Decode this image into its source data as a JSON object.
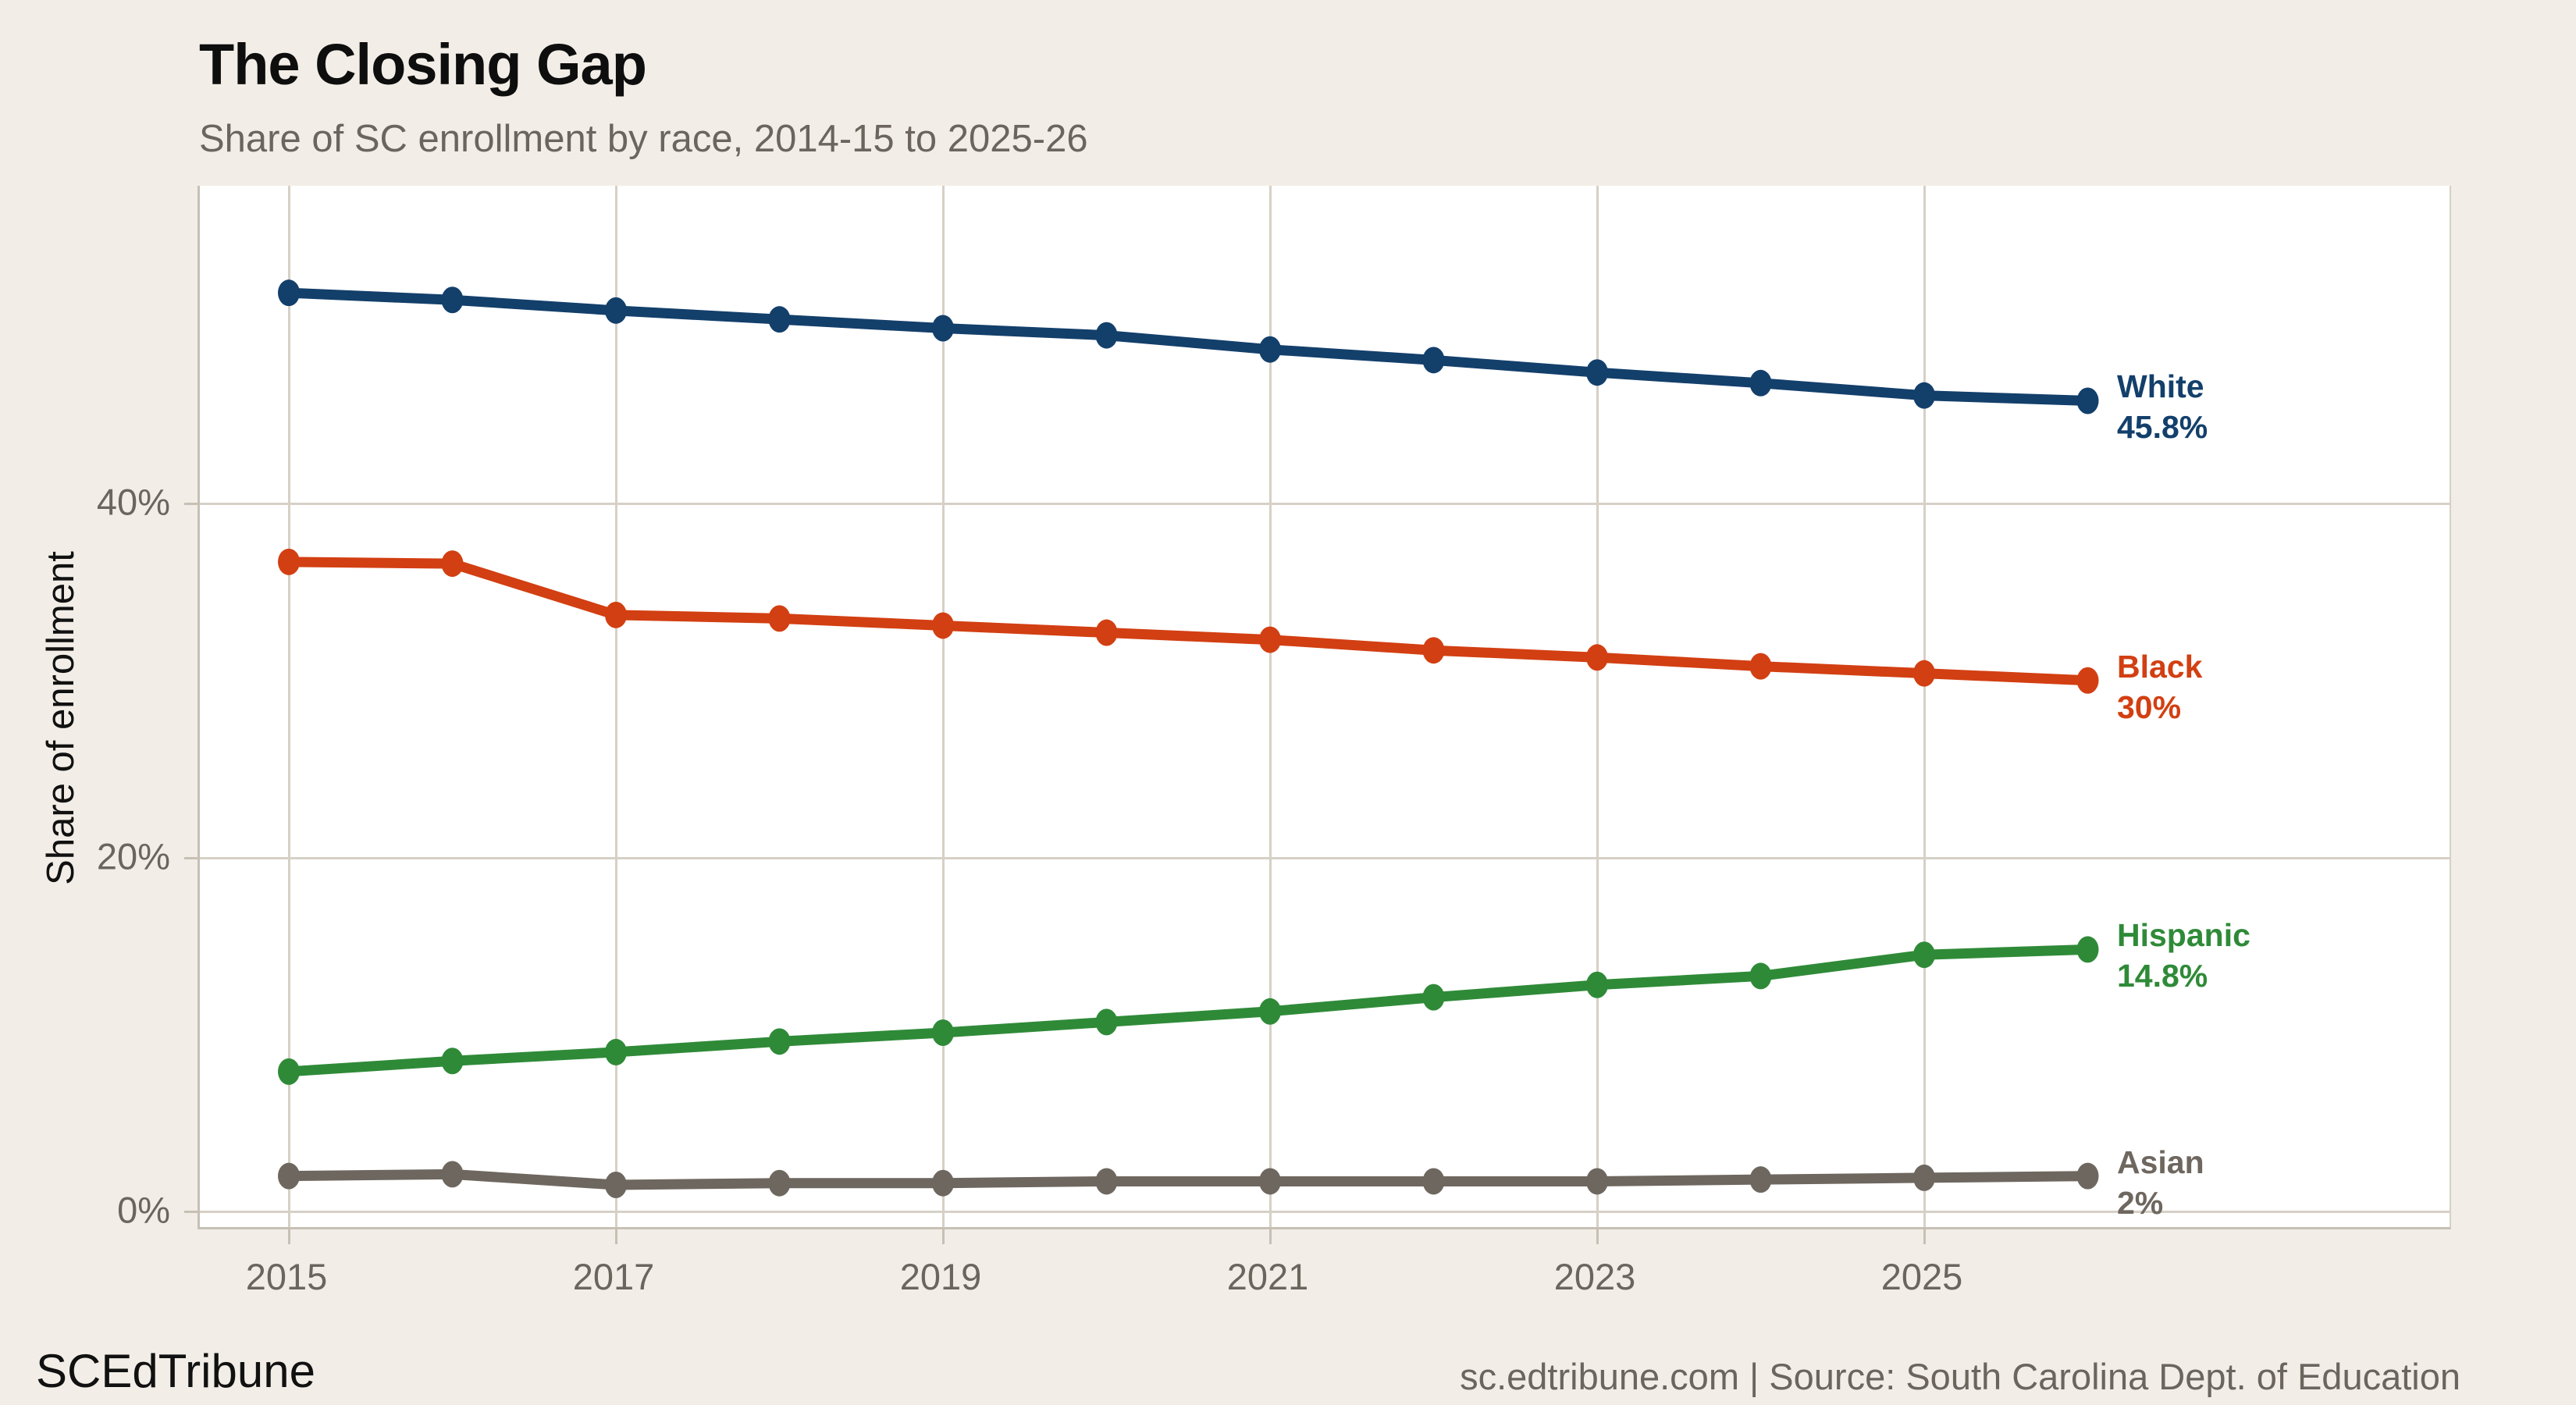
{
  "header": {
    "title": "The Closing Gap",
    "subtitle": "Share of SC enrollment by race, 2014-15 to 2025-26"
  },
  "chart_data": {
    "type": "line",
    "x": [
      2015,
      2016,
      2017,
      2018,
      2019,
      2020,
      2021,
      2022,
      2023,
      2024,
      2025,
      2026
    ],
    "x_tick_years": [
      2015,
      2017,
      2019,
      2021,
      2023,
      2025
    ],
    "x_tick_labels": [
      "2015",
      "2017",
      "2019",
      "2021",
      "2023",
      "2025"
    ],
    "y_ticks": [
      0,
      20,
      40
    ],
    "y_tick_labels": [
      "0%",
      "20%",
      "40%"
    ],
    "ylabel": "Share of enrollment",
    "ylim": [
      -1,
      58
    ],
    "grid": true,
    "legend_position": "line-end-labels-right",
    "series": [
      {
        "name": "White",
        "color": "#133f6b",
        "end_label": "45.8%",
        "values": [
          51.9,
          51.5,
          50.9,
          50.4,
          49.9,
          49.5,
          48.7,
          48.1,
          47.4,
          46.8,
          46.1,
          45.8
        ]
      },
      {
        "name": "Black",
        "color": "#d23f12",
        "end_label": "30%",
        "values": [
          36.7,
          36.6,
          33.7,
          33.5,
          33.1,
          32.7,
          32.3,
          31.7,
          31.3,
          30.8,
          30.4,
          30.0
        ]
      },
      {
        "name": "Hispanic",
        "color": "#2f8a38",
        "end_label": "14.8%",
        "values": [
          7.9,
          8.5,
          9.0,
          9.6,
          10.1,
          10.7,
          11.3,
          12.1,
          12.8,
          13.3,
          14.5,
          14.8
        ]
      },
      {
        "name": "Asian",
        "color": "#6e675f",
        "end_label": "2%",
        "values": [
          2.0,
          2.1,
          1.5,
          1.6,
          1.6,
          1.7,
          1.7,
          1.7,
          1.7,
          1.8,
          1.9,
          2.0
        ]
      }
    ]
  },
  "footer": {
    "brand": "SCEdTribune",
    "source": "sc.edtribune.com | Source: South Carolina Dept. of Education"
  }
}
